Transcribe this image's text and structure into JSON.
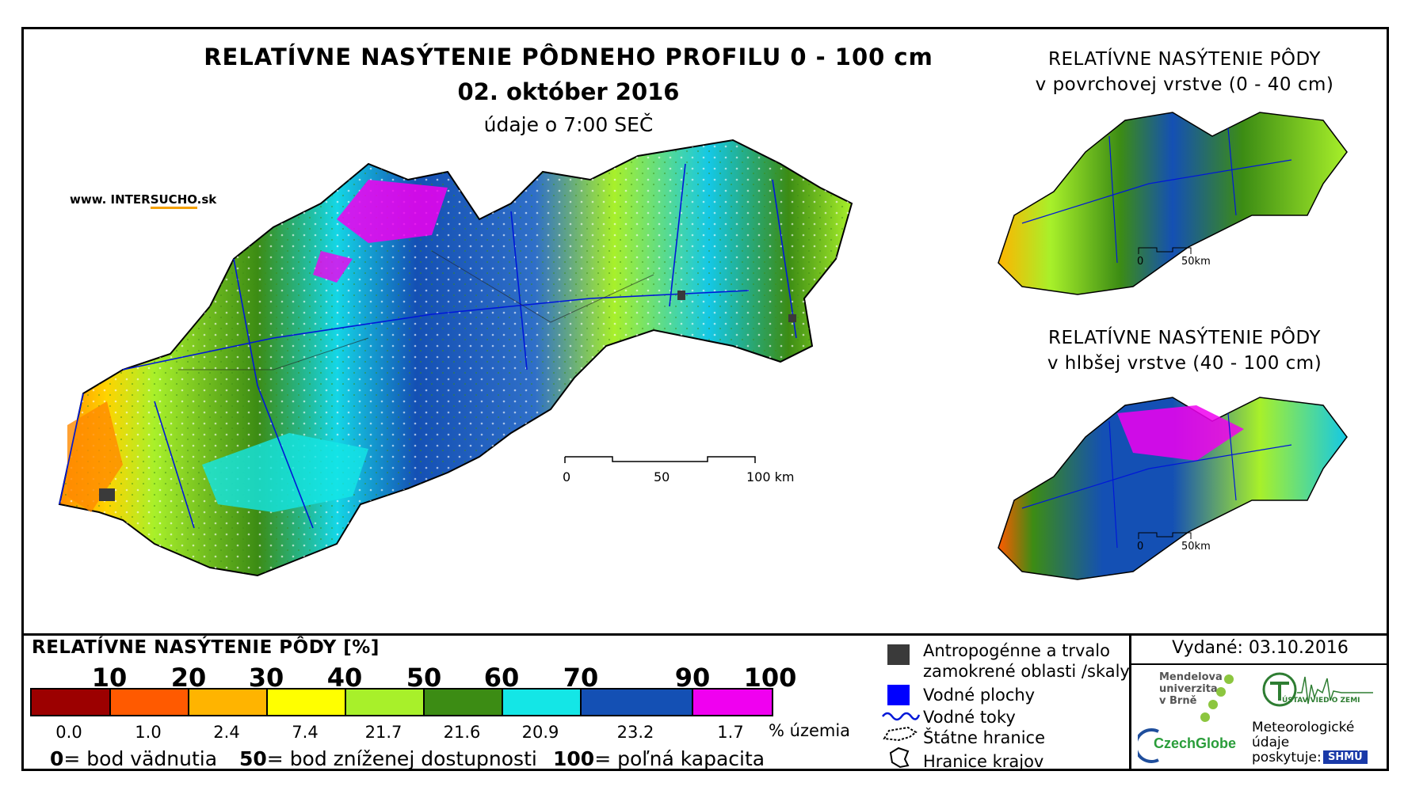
{
  "title": "RELATÍVNE NASÝTENIE PÔDNEHO PROFILU 0 - 100 cm",
  "date": "02. október 2016",
  "data_time": "údaje o 7:00 SEČ",
  "brand": {
    "prefix": "www. INTER",
    "accent": "SUCHO",
    "suffix": ".sk"
  },
  "inset_top": {
    "line1": "RELATÍVNE NASÝTENIE PÔDY",
    "line2": "v povrchovej vrstve (0 - 40 cm)"
  },
  "inset_bottom": {
    "line1": "RELATÍVNE NASÝTENIE PÔDY",
    "line2": "v hlbšej vrstve (40 - 100 cm)"
  },
  "main_scale": {
    "labels": [
      "0",
      "50",
      "100 km"
    ]
  },
  "inset_scale": {
    "labels": [
      "0",
      "50km"
    ]
  },
  "legend": {
    "title": "RELATÍVNE NASÝTENIE PÔDY [%]",
    "thresholds": [
      "10",
      "20",
      "30",
      "40",
      "50",
      "60",
      "70",
      "90",
      "100"
    ],
    "classes": [
      {
        "color": "#9c0000",
        "pct": "0.0"
      },
      {
        "color": "#ff5a00",
        "pct": "1.0"
      },
      {
        "color": "#ffb400",
        "pct": "2.4"
      },
      {
        "color": "#ffff00",
        "pct": "7.4"
      },
      {
        "color": "#a8f02a",
        "pct": "21.7"
      },
      {
        "color": "#3c8c14",
        "pct": "21.6"
      },
      {
        "color": "#14e6e6",
        "pct": "20.9"
      },
      {
        "color": "#1450b4",
        "pct": "23.2"
      },
      {
        "color": "#f000f0",
        "pct": "1.7"
      }
    ],
    "unit": "% územia",
    "notes": [
      {
        "key": "0",
        "text": "= bod vädnutia"
      },
      {
        "key": "50",
        "text": "= bod zníženej dostupnosti"
      },
      {
        "key": "100",
        "text": "= poľná kapacita"
      }
    ],
    "symbols": {
      "anthropogenic": "Antropogénne a trvalo",
      "anthropogenic2": "zamokrené oblasti /skaly",
      "water_areas": "Vodné plochy",
      "rivers": "Vodné toky",
      "state_border": "Štátne hranice",
      "region_border": "Hranice krajov"
    }
  },
  "issued": "Vydané: 03.10.2016",
  "logos": {
    "mendel": "Mendelova\nuniverzita\nv Brně",
    "czechglobe": "CzechGlobe",
    "uvz": "ÚSTAV VIED O ZEMI",
    "meteo": "Meteorologické\núdaje\nposkytuje:",
    "shmu": "SHMÚ"
  },
  "colors": {
    "drought_red": "#9c0000",
    "water_blue": "#0000ff",
    "anthropogenic_gray": "#3a3a3a"
  }
}
